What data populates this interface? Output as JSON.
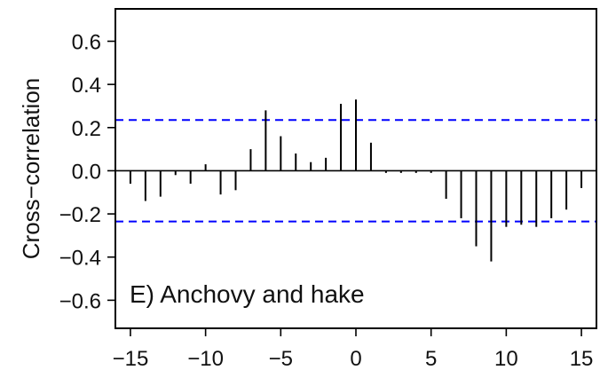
{
  "chart_data": {
    "type": "bar",
    "title": "",
    "panel_label": "E)  Anchovy and hake",
    "xlabel": "",
    "ylabel": "Cross−correlation",
    "xlim": [
      -16,
      16
    ],
    "ylim": [
      -0.73,
      0.75
    ],
    "x_ticks": [
      -15,
      -10,
      -5,
      0,
      5,
      10,
      15
    ],
    "x_tick_labels": [
      "−15",
      "−10",
      "−5",
      "0",
      "5",
      "10",
      "15"
    ],
    "y_ticks": [
      0.6,
      0.4,
      0.2,
      0.0,
      -0.2,
      -0.4,
      -0.6
    ],
    "y_tick_labels": [
      "0.6",
      "0.4",
      "0.2",
      "0.0",
      "−0.2",
      "−0.4",
      "−0.6"
    ],
    "confidence_bounds": [
      0.235,
      -0.235
    ],
    "bound_color": "#0000ff",
    "bar_color": "#000000",
    "x": [
      -15,
      -14,
      -13,
      -12,
      -11,
      -10,
      -9,
      -8,
      -7,
      -6,
      -5,
      -4,
      -3,
      -2,
      -1,
      0,
      1,
      2,
      3,
      4,
      5,
      6,
      7,
      8,
      9,
      10,
      11,
      12,
      13,
      14,
      15
    ],
    "values": [
      -0.06,
      -0.14,
      -0.12,
      -0.02,
      -0.06,
      0.03,
      -0.11,
      -0.09,
      0.1,
      0.28,
      0.16,
      0.08,
      0.04,
      0.06,
      0.31,
      0.33,
      0.13,
      -0.01,
      -0.01,
      -0.01,
      -0.01,
      -0.13,
      -0.22,
      -0.35,
      -0.42,
      -0.26,
      -0.25,
      -0.26,
      -0.22,
      -0.18,
      -0.08
    ]
  }
}
